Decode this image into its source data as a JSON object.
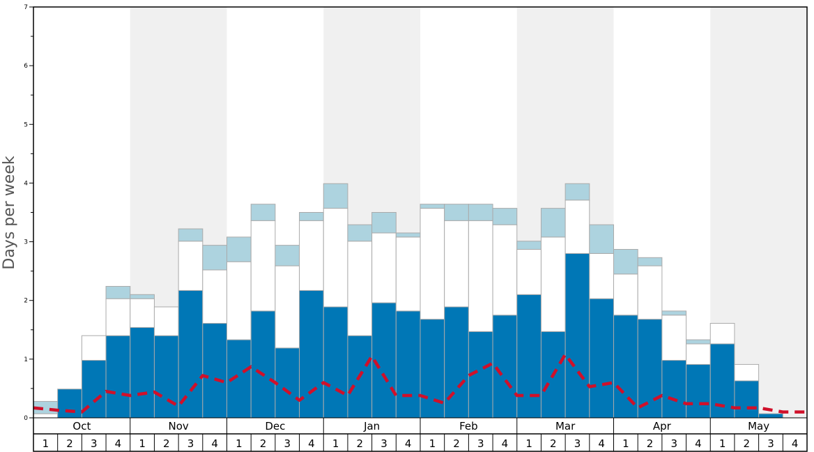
{
  "chart_data": {
    "type": "bar",
    "ylabel": "Days per week",
    "ylim": [
      0,
      7
    ],
    "yticks": [
      0,
      1,
      2,
      3,
      4,
      5,
      6,
      7
    ],
    "months": [
      "Oct",
      "Nov",
      "Dec",
      "Jan",
      "Feb",
      "Mar",
      "Apr",
      "May"
    ],
    "weeks": [
      "1",
      "2",
      "3",
      "4"
    ],
    "shaded_months": [
      "Nov",
      "Jan",
      "Mar",
      "May"
    ],
    "colors": {
      "base": "#0077b6",
      "mid": "#ffffff",
      "top": "#add3df",
      "line": "#d0102a",
      "shade": "#f0f0f0",
      "bar_border": "#aaaaaa"
    },
    "series": [
      {
        "key": "base",
        "values": [
          0.0,
          0.49,
          0.98,
          1.4,
          1.54,
          1.4,
          2.17,
          1.61,
          1.33,
          1.82,
          1.19,
          2.17,
          1.89,
          1.4,
          1.96,
          1.82,
          1.68,
          1.89,
          1.47,
          1.75,
          2.1,
          1.47,
          2.8,
          2.03,
          1.75,
          1.68,
          0.98,
          0.91,
          1.26,
          0.63,
          0.07,
          0.0
        ]
      },
      {
        "key": "mid",
        "values": [
          0.07,
          0.0,
          0.42,
          0.63,
          0.49,
          0.49,
          0.84,
          0.91,
          1.33,
          1.54,
          1.4,
          1.19,
          1.68,
          1.61,
          1.19,
          1.26,
          1.89,
          1.47,
          1.89,
          1.54,
          0.77,
          1.61,
          0.91,
          0.77,
          0.7,
          0.91,
          0.77,
          0.35,
          0.35,
          0.28,
          0.0,
          0.0
        ]
      },
      {
        "key": "top",
        "values": [
          0.21,
          0.0,
          0.0,
          0.21,
          0.07,
          0.0,
          0.21,
          0.42,
          0.42,
          0.28,
          0.35,
          0.14,
          0.42,
          0.28,
          0.35,
          0.07,
          0.07,
          0.28,
          0.28,
          0.28,
          0.14,
          0.49,
          0.28,
          0.49,
          0.42,
          0.14,
          0.07,
          0.07,
          0.0,
          0.0,
          0.0,
          0.0
        ]
      }
    ],
    "dashed_line": [
      0.17,
      0.13,
      0.1,
      0.45,
      0.38,
      0.44,
      0.2,
      0.72,
      0.6,
      0.87,
      0.6,
      0.3,
      0.6,
      0.38,
      1.05,
      0.38,
      0.38,
      0.25,
      0.72,
      0.93,
      0.38,
      0.38,
      1.08,
      0.53,
      0.6,
      0.17,
      0.38,
      0.24,
      0.24,
      0.17,
      0.17,
      0.1,
      0.1
    ]
  }
}
